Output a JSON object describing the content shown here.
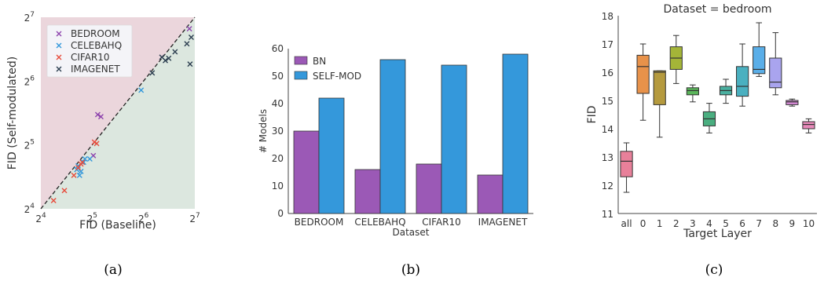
{
  "chart_data": [
    {
      "type": "scatter",
      "caption": "(a)",
      "xlabel": "FID (Baseline)",
      "ylabel": "FID (Self-modulated)",
      "scale": "log2",
      "xlim": [
        16,
        128
      ],
      "ylim": [
        16,
        128
      ],
      "x_ticks": [
        {
          "value": 16,
          "base": "2",
          "exp": "4"
        },
        {
          "value": 32,
          "base": "2",
          "exp": "5"
        },
        {
          "value": 64,
          "base": "2",
          "exp": "6"
        },
        {
          "value": 128,
          "base": "2",
          "exp": "7"
        }
      ],
      "y_ticks": [
        {
          "value": 16,
          "base": "2",
          "exp": "4"
        },
        {
          "value": 32,
          "base": "2",
          "exp": "5"
        },
        {
          "value": 64,
          "base": "2",
          "exp": "6"
        },
        {
          "value": 128,
          "base": "2",
          "exp": "7"
        }
      ],
      "regions": {
        "above_diagonal": "#ebd6dc",
        "below_diagonal": "#dce7df"
      },
      "legend_position": "top-left",
      "series": [
        {
          "name": "BEDROOM",
          "color": "#8e44ad",
          "points": [
            [
              34.5,
              44.5
            ],
            [
              36.0,
              43.5
            ],
            [
              32.5,
              28.5
            ],
            [
              119,
              113
            ]
          ]
        },
        {
          "name": "CELEBAHQ",
          "color": "#3498db",
          "points": [
            [
              28.5,
              26.5
            ],
            [
              29.0,
              27.5
            ],
            [
              31.0,
              27.5
            ],
            [
              27.5,
              24.0
            ],
            [
              27.0,
              23.0
            ],
            [
              26.5,
              25.5
            ],
            [
              26.0,
              24.5
            ],
            [
              62,
              58
            ]
          ]
        },
        {
          "name": "CIFAR10",
          "color": "#e74c3c",
          "points": [
            [
              19.0,
              17.5
            ],
            [
              22.0,
              19.5
            ],
            [
              25.0,
              23.0
            ],
            [
              26.5,
              25.0
            ],
            [
              27.5,
              26.0
            ],
            [
              28.0,
              26.5
            ],
            [
              33.0,
              33.0
            ],
            [
              34.0,
              32.5
            ]
          ]
        },
        {
          "name": "IMAGENET",
          "color": "#2c3e50",
          "points": [
            [
              72,
              70
            ],
            [
              82,
              83
            ],
            [
              86,
              80
            ],
            [
              90,
              82
            ],
            [
              98,
              88
            ],
            [
              115,
              96
            ],
            [
              120,
              77
            ],
            [
              122,
              103
            ]
          ]
        }
      ]
    },
    {
      "type": "bar",
      "caption": "(b)",
      "xlabel": "Dataset",
      "ylabel": "# Models",
      "ylim": [
        0,
        60
      ],
      "y_ticks": [
        0,
        10,
        20,
        30,
        40,
        50,
        60
      ],
      "categories": [
        "BEDROOM",
        "CELEBAHQ",
        "CIFAR10",
        "IMAGENET"
      ],
      "legend_position": "top-left",
      "series": [
        {
          "name": "BN",
          "color": "#9b59b6",
          "values": [
            30,
            16,
            18,
            14
          ]
        },
        {
          "name": "SELF-MOD",
          "color": "#3498db",
          "values": [
            42,
            56,
            54,
            58
          ]
        }
      ]
    },
    {
      "type": "box",
      "caption": "(c)",
      "title": "Dataset = bedroom",
      "xlabel": "Target Layer",
      "ylabel": "FID",
      "ylim": [
        11,
        18
      ],
      "y_ticks": [
        11,
        12,
        13,
        14,
        15,
        16,
        17,
        18
      ],
      "categories": [
        "all",
        "0",
        "1",
        "2",
        "3",
        "4",
        "5",
        "6",
        "7",
        "8",
        "9",
        "10"
      ],
      "boxes": [
        {
          "category": "all",
          "min": 11.75,
          "q1": 12.3,
          "median": 12.85,
          "q3": 13.2,
          "max": 13.5,
          "color": "#e8809a"
        },
        {
          "category": "0",
          "min": 14.3,
          "q1": 15.25,
          "median": 16.2,
          "q3": 16.6,
          "max": 17.0,
          "color": "#e8924a"
        },
        {
          "category": "1",
          "min": 13.7,
          "q1": 14.85,
          "median": 16.0,
          "q3": 16.05,
          "max": 16.05,
          "color": "#b59a3e"
        },
        {
          "category": "2",
          "min": 15.6,
          "q1": 16.1,
          "median": 16.5,
          "q3": 16.9,
          "max": 17.3,
          "color": "#a4b538"
        },
        {
          "category": "3",
          "min": 14.95,
          "q1": 15.2,
          "median": 15.35,
          "q3": 15.45,
          "max": 15.55,
          "color": "#5ab55a"
        },
        {
          "category": "4",
          "min": 13.85,
          "q1": 14.1,
          "median": 14.35,
          "q3": 14.6,
          "max": 14.9,
          "color": "#4aae80"
        },
        {
          "category": "5",
          "min": 14.9,
          "q1": 15.2,
          "median": 15.35,
          "q3": 15.5,
          "max": 15.75,
          "color": "#4ab0a0"
        },
        {
          "category": "6",
          "min": 14.8,
          "q1": 15.15,
          "median": 15.5,
          "q3": 16.2,
          "max": 17.0,
          "color": "#4ab0c0"
        },
        {
          "category": "7",
          "min": 15.85,
          "q1": 15.95,
          "median": 16.1,
          "q3": 16.9,
          "max": 17.75,
          "color": "#5aaee8"
        },
        {
          "category": "8",
          "min": 15.2,
          "q1": 15.45,
          "median": 15.65,
          "q3": 16.5,
          "max": 17.4,
          "color": "#a9a4ee"
        },
        {
          "category": "9",
          "min": 14.8,
          "q1": 14.85,
          "median": 14.95,
          "q3": 15.0,
          "max": 15.05,
          "color": "#d88ad8"
        },
        {
          "category": "10",
          "min": 13.85,
          "q1": 14.0,
          "median": 14.15,
          "q3": 14.25,
          "max": 14.35,
          "color": "#e88aba"
        }
      ]
    }
  ]
}
